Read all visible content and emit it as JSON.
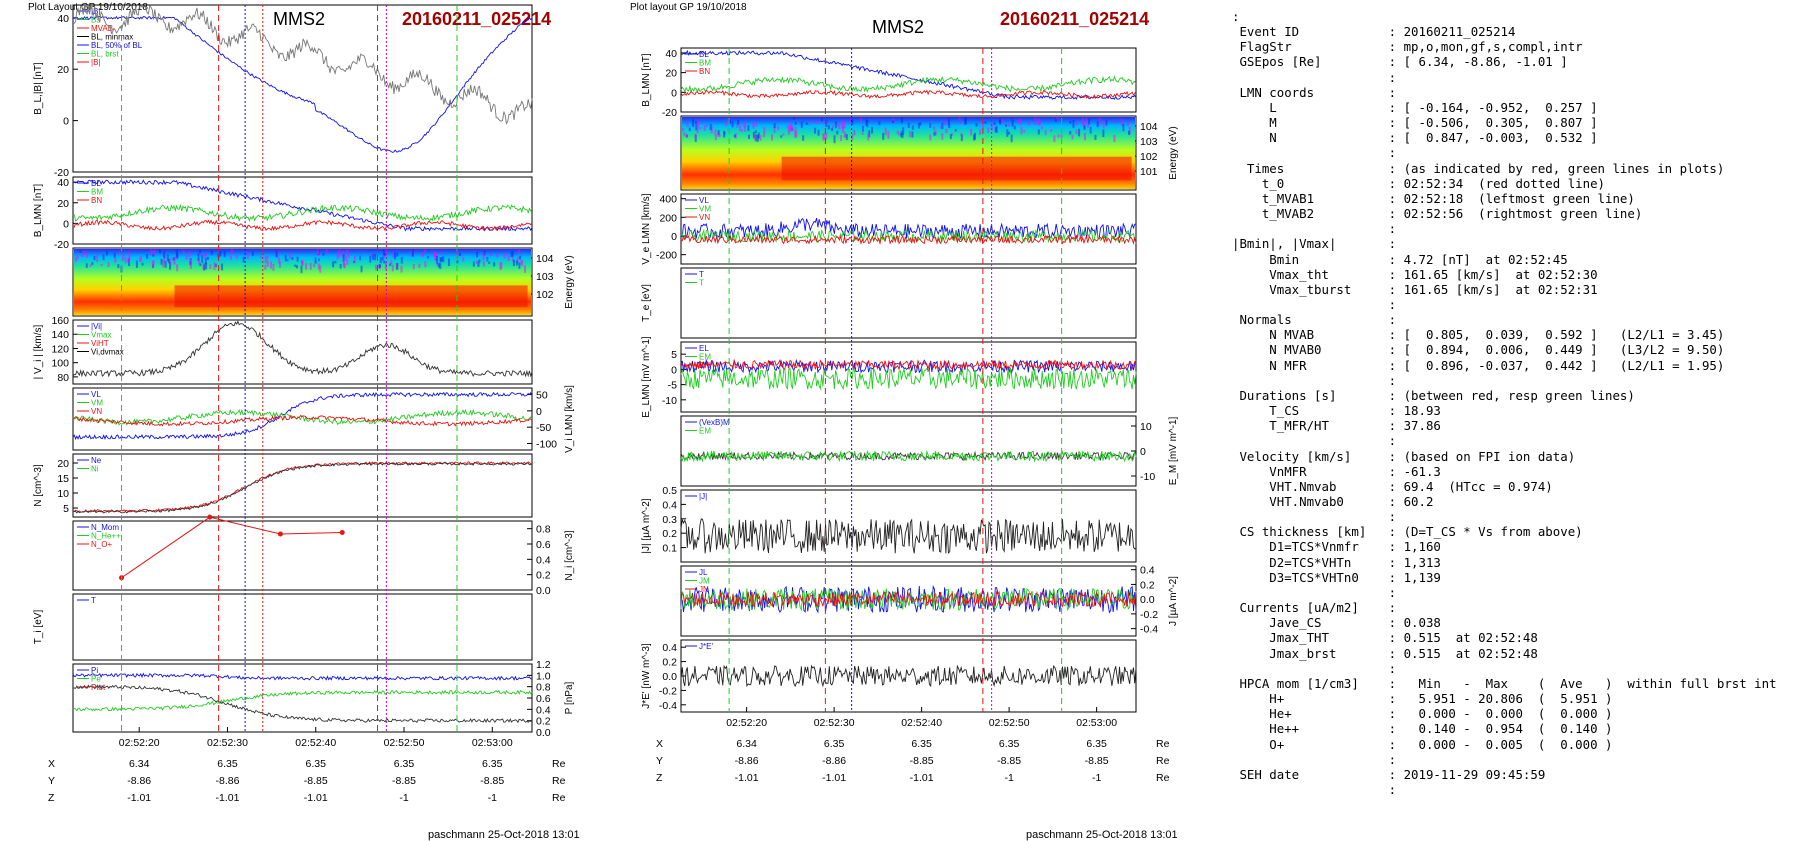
{
  "header": {
    "left_caption": "Plot Layout GP 19/10/2018",
    "right_caption": "Plot layout GP 19/10/2018",
    "spacecraft": "MMS2",
    "event_id": "20160211_025214",
    "footer": "paschmann 25-Oct-2018 13:01"
  },
  "colors": {
    "event_id": "#a30000",
    "red": "#ee1111",
    "green": "#22cc22",
    "blue": "#1111ee",
    "magenta": "#cc00cc",
    "black": "#000000"
  },
  "chart_data": [
    {
      "type": "line",
      "id": "left_column",
      "time_axis": {
        "ticks": [
          "02:52:20",
          "02:52:30",
          "02:52:40",
          "02:52:50",
          "02:53:00"
        ]
      },
      "markers": {
        "red_dashed": [
          "02:52:29",
          "02:52:47"
        ],
        "red_dotted": [
          "02:52:34"
        ],
        "green_dashed": [
          "02:52:18",
          "02:52:56"
        ],
        "blue_dotted": [
          "02:52:32"
        ],
        "magenta_dotted": [
          "02:52:48"
        ]
      },
      "panels": [
        {
          "ylabel": "B_L,|B| [nT]",
          "ylim": [
            -20,
            45
          ],
          "ticks": [
            "40",
            "20",
            "0",
            "-20"
          ],
          "legend": [
            "|B|",
            "Bs",
            "MVAB",
            "BL, minmax",
            "BL, 50% of BL",
            "BL, brst",
            "|B|"
          ]
        },
        {
          "ylabel": "B_LMN [nT]",
          "ylim": [
            -20,
            45
          ],
          "ticks": [
            "40",
            "20",
            "0",
            "-20"
          ],
          "legend": [
            "BL",
            "BM",
            "BN"
          ]
        },
        {
          "ylabel": "Energy (eV)",
          "ticks_right": [
            "10^4",
            "10^3",
            "10^2"
          ],
          "type": "spectrogram"
        },
        {
          "ylabel": "| V_i | [km/s]",
          "ylim": [
            70,
            160
          ],
          "ticks": [
            "160",
            "140",
            "120",
            "100",
            "80"
          ],
          "legend": [
            "|Vi|",
            "Vmax",
            "ViHT",
            "Vi,dvmax"
          ]
        },
        {
          "ylabel": "V_i LMN [km/s]",
          "ylim": [
            -120,
            70
          ],
          "ticks_right": [
            "50",
            "0",
            "-50",
            "-100"
          ],
          "legend": [
            "VL",
            "VM",
            "VN"
          ]
        },
        {
          "ylabel": "N [cm^-3]",
          "ylim": [
            2,
            23
          ],
          "ticks": [
            "20",
            "15",
            "10",
            "5"
          ],
          "legend": [
            "Ne",
            "Ni"
          ]
        },
        {
          "ylabel": "N_i [cm^-3]",
          "ylim": [
            0,
            0.9
          ],
          "ticks_right": [
            "0.8",
            "0.6",
            "0.4",
            "0.2",
            "0.0"
          ],
          "legend": [
            "N_Mom",
            "N_He++",
            "N_O+"
          ],
          "points_He": [
            [
              -6,
              0.16
            ],
            [
              4,
              0.95
            ],
            [
              12,
              0.73
            ],
            [
              19,
              0.75
            ]
          ]
        },
        {
          "ylabel": "T_i [eV]",
          "legend": [
            "T"
          ]
        },
        {
          "ylabel": "P [nPa]",
          "ylim": [
            0,
            1.2
          ],
          "ticks_right": [
            "1.2",
            "1.0",
            "0.8",
            "0.6",
            "0.4",
            "0.2",
            "0.0"
          ],
          "legend": [
            "Pi",
            "Pe",
            "Ptot"
          ]
        }
      ],
      "position_table": {
        "rows": [
          {
            "label": "X",
            "values": [
              "6.34",
              "6.35",
              "6.35",
              "6.35",
              "6.35"
            ],
            "unit": "Re"
          },
          {
            "label": "Y",
            "values": [
              "-8.86",
              "-8.86",
              "-8.85",
              "-8.85",
              "-8.85"
            ],
            "unit": "Re"
          },
          {
            "label": "Z",
            "values": [
              "-1.01",
              "-1.01",
              "-1.01",
              "-1",
              "-1"
            ],
            "unit": "Re"
          }
        ]
      }
    },
    {
      "type": "line",
      "id": "right_column",
      "time_axis": {
        "ticks": [
          "02:52:20",
          "02:52:30",
          "02:52:40",
          "02:52:50",
          "02:53:00"
        ]
      },
      "markers": {
        "red_dashed": [
          "02:52:29",
          "02:52:47"
        ],
        "green_dashed": [
          "02:52:18",
          "02:52:56"
        ],
        "blue_dotted": [
          "02:52:32"
        ],
        "magenta_dotted": [
          "02:52:48"
        ]
      },
      "panels": [
        {
          "ylabel": "B_LMN [nT]",
          "ylim": [
            -20,
            45
          ],
          "ticks": [
            "40",
            "20",
            "0",
            "-20"
          ],
          "legend": [
            "BL",
            "BM",
            "BN"
          ]
        },
        {
          "ylabel": "Energy (eV)",
          "ticks_right": [
            "10^4",
            "10^3",
            "10^2",
            "10^1"
          ],
          "type": "spectrogram"
        },
        {
          "ylabel": "V_e LMN [km/s]",
          "ylim": [
            -300,
            450
          ],
          "ticks": [
            "400",
            "200",
            "0",
            "-200"
          ],
          "legend": [
            "VL",
            "VM",
            "VN"
          ]
        },
        {
          "ylabel": "T_e [eV]",
          "legend": [
            "T",
            "T"
          ]
        },
        {
          "ylabel": "E_LMN [mV m^-1]",
          "ylim": [
            -14,
            9
          ],
          "ticks": [
            "5",
            "0",
            "-5",
            "-10"
          ],
          "legend": [
            "EL",
            "EM",
            "EN"
          ]
        },
        {
          "ylabel": "E_M [mV m^-1]",
          "ylim": [
            -14,
            14
          ],
          "ticks_right": [
            "10",
            "0",
            "-10"
          ],
          "legend": [
            "(VexB)M",
            "EM"
          ]
        },
        {
          "ylabel": "|J| [µA m^-2]",
          "ylim": [
            0,
            0.5
          ],
          "ticks": [
            "0.5",
            "0.4",
            "0.3",
            "0.2",
            "0.1"
          ],
          "legend": [
            "|J|"
          ]
        },
        {
          "ylabel": "J [µA m^-2]",
          "ylim": [
            -0.5,
            0.45
          ],
          "ticks_right": [
            "0.4",
            "0.2",
            "0.0",
            "-0.2",
            "-0.4"
          ],
          "legend": [
            "JL",
            "JM",
            "JN"
          ]
        },
        {
          "ylabel": "J*E' [nW m^-3]",
          "ylim": [
            -0.5,
            0.5
          ],
          "ticks": [
            "0.4",
            "0.2",
            "0.0",
            "-0.2",
            "-0.4"
          ],
          "legend": [
            "J*E'"
          ]
        }
      ],
      "position_table": {
        "rows": [
          {
            "label": "X",
            "values": [
              "6.34",
              "6.35",
              "6.35",
              "6.35",
              "6.35"
            ],
            "unit": "Re"
          },
          {
            "label": "Y",
            "values": [
              "-8.86",
              "-8.86",
              "-8.85",
              "-8.85",
              "-8.85"
            ],
            "unit": "Re"
          },
          {
            "label": "Z",
            "values": [
              "-1.01",
              "-1.01",
              "-1.01",
              "-1",
              "-1"
            ],
            "unit": "Re"
          }
        ]
      }
    }
  ],
  "info_lines": [
    ":",
    " Event ID            : 20160211_025214",
    " FlagStr             : mp,o,mon,gf,s,compl,intr",
    " GSEpos [Re]         : [ 6.34, -8.86, -1.01 ]",
    "                     :",
    " LMN coords          :",
    "     L               : [ -0.164, -0.952,  0.257 ]",
    "     M               : [ -0.506,  0.305,  0.807 ]",
    "     N               : [  0.847, -0.003,  0.532 ]",
    "                     :",
    "  Times              : (as indicated by red, green lines in plots)",
    "    t_0              : 02:52:34  (red dotted line)",
    "    t_MVAB1          : 02:52:18  (leftmost green line)",
    "    t_MVAB2          : 02:52:56  (rightmost green line)",
    "                     :",
    "|Bmin|, |Vmax|       :",
    "     Bmin            : 4.72 [nT]  at 02:52:45",
    "     Vmax_tht        : 161.65 [km/s]  at 02:52:30",
    "     Vmax_tburst     : 161.65 [km/s]  at 02:52:31",
    "                     :",
    " Normals             :",
    "     N MVAB          : [  0.805,  0.039,  0.592 ]   (L2/L1 = 3.45)",
    "     N MVAB0         : [  0.894,  0.006,  0.449 ]   (L3/L2 = 9.50)",
    "     N MFR           : [  0.896, -0.037,  0.442 ]   (L2/L1 = 1.95)",
    "                     :",
    " Durations [s]       : (between red, resp green lines)",
    "     T_CS            : 18.93",
    "     T_MFR/HT        : 37.86",
    "                     :",
    " Velocity [km/s]     : (based on FPI ion data)",
    "     VnMFR           : -61.3",
    "     VHT.Nmvab       : 69.4  (HTcc = 0.974)",
    "     VHT.Nmvab0      : 60.2",
    "                     :",
    " CS thickness [km]   : (D=T_CS * Vs from above)",
    "     D1=TCS*Vnmfr    : 1,160",
    "     D2=TCS*VHTn     : 1,313",
    "     D3=TCS*VHTn0    : 1,139",
    "                     :",
    " Currents [uA/m2]    :",
    "     Jave_CS         : 0.038",
    "     Jmax_THT        : 0.515  at 02:52:48",
    "     Jmax_brst       : 0.515  at 02:52:48",
    "                     :",
    " HPCA mom [1/cm3]    :   Min   -  Max    (  Ave   )  within full brst int",
    "     H+              :   5.951 - 20.806  (  5.951 )",
    "     He+             :   0.000 -  0.000  (  0.000 )",
    "     He++            :   0.140 -  0.954  (  0.140 )",
    "     O+              :   0.000 -  0.005  (  0.000 )",
    "                     :",
    " SEH date            : 2019-11-29 09:45:59",
    "                     :"
  ]
}
